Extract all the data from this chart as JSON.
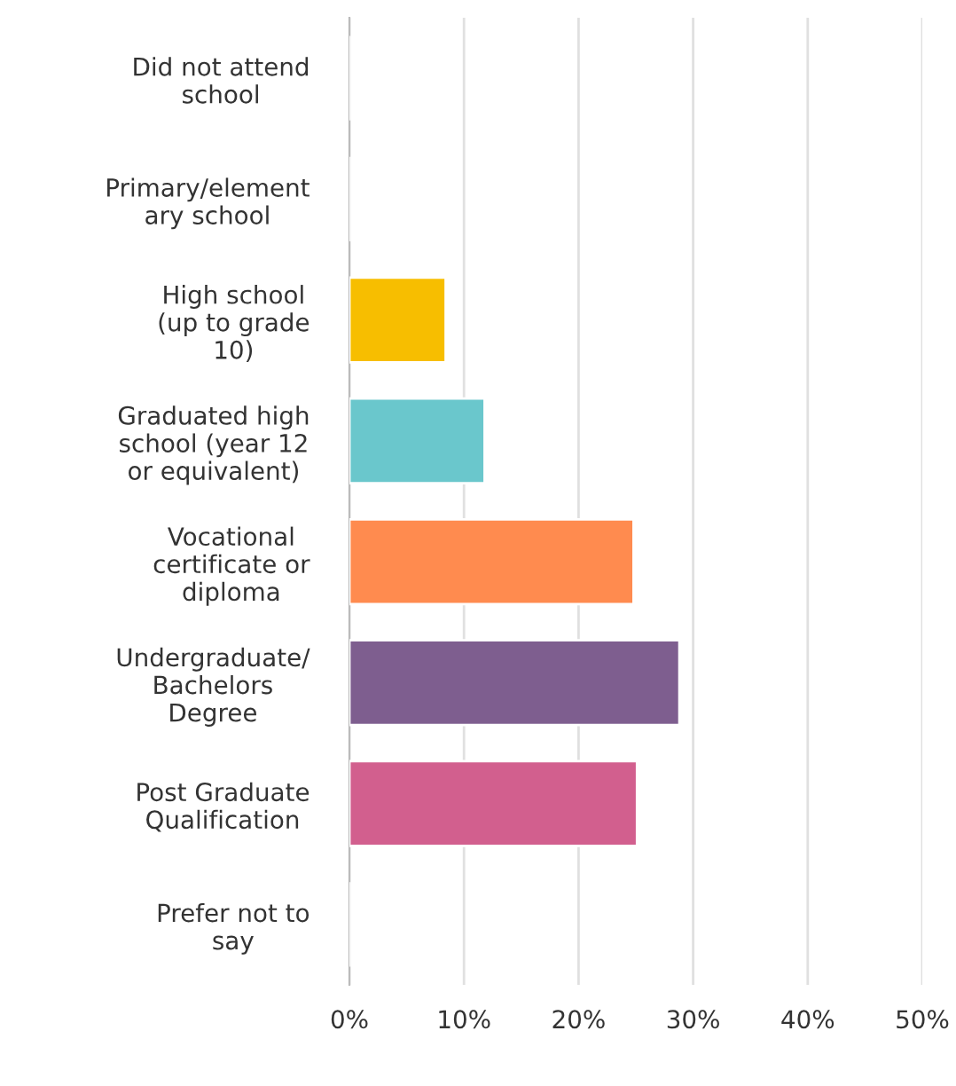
{
  "chart_data": {
    "type": "bar",
    "orientation": "horizontal",
    "categories": [
      "Did not attend\nschool",
      "Primary/element\nary school",
      "High school\n(up to grade\n10)",
      "Graduated high\nschool (year 12\nor equivalent)",
      "Vocational\ncertificate or\ndiploma",
      "Undergraduate/\nBachelors\nDegree",
      "Post Graduate\nQualification",
      "Prefer not to\nsay"
    ],
    "values": [
      0,
      0,
      8.4,
      11.8,
      24.8,
      28.8,
      25.1,
      0
    ],
    "colors": [
      null,
      null,
      "#f7be00",
      "#6ac7cc",
      "#ff8b4f",
      "#7e5e8f",
      "#d25f8e",
      null
    ],
    "xlim": [
      0,
      50
    ],
    "xticks": [
      {
        "value": 0,
        "label": "0%"
      },
      {
        "value": 10,
        "label": "10%"
      },
      {
        "value": 20,
        "label": "20%"
      },
      {
        "value": 30,
        "label": "30%"
      },
      {
        "value": 40,
        "label": "40%"
      },
      {
        "value": 50,
        "label": "50%"
      }
    ],
    "grid": "x"
  }
}
